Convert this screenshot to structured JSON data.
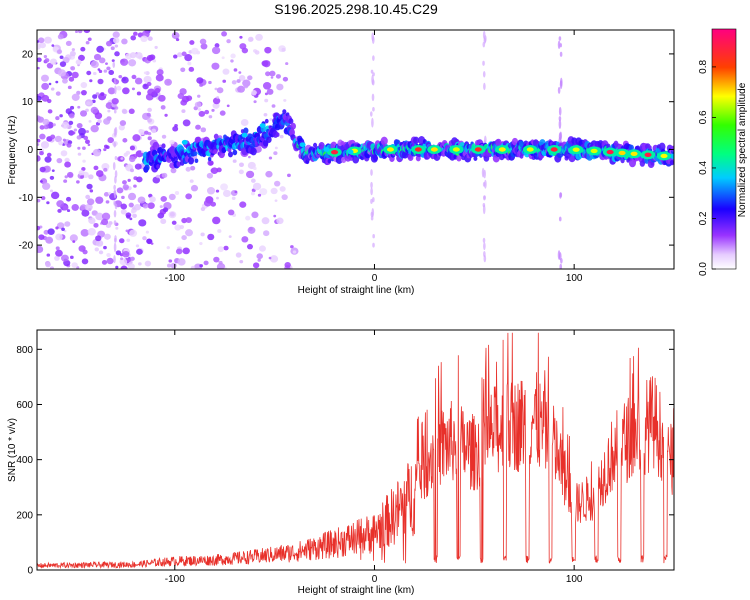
{
  "figure_title": "S196.2025.298.10.45.C29",
  "colors": {
    "snr_line": "#e8302a",
    "colormap": [
      "#ffffff",
      "#cc99ff",
      "#8000ff",
      "#0000ff",
      "#00ffff",
      "#00ff00",
      "#ffff00",
      "#ff0000",
      "#ff00aa"
    ]
  },
  "chart_data": [
    {
      "type": "heatmap",
      "title": "S196.2025.298.10.45.C29",
      "xlabel": "Height of straight line (km)",
      "ylabel": "Frequency (Hz)",
      "xlim": [
        -169,
        150
      ],
      "ylim": [
        -25,
        25
      ],
      "xticks": [
        -100,
        0,
        100
      ],
      "yticks": [
        -20,
        -10,
        0,
        10,
        20
      ],
      "colorbar": {
        "label": "Normalized spectral amplitude",
        "range": [
          0,
          0.95
        ],
        "ticks": [
          0.0,
          0.2,
          0.4,
          0.6,
          0.8
        ]
      },
      "features": [
        {
          "name": "broadband noise",
          "x_range": [
            -169,
            -40
          ],
          "freq_range": [
            -25,
            25
          ],
          "amplitude": 0.15
        },
        {
          "name": "signal trace",
          "x_range": [
            -115,
            150
          ],
          "freq_center": [
            [
              -115,
              -2
            ],
            [
              -60,
              2
            ],
            [
              -45,
              6
            ],
            [
              -35,
              -1
            ],
            [
              0,
              0
            ],
            [
              100,
              0
            ],
            [
              150,
              -1.5
            ]
          ],
          "amplitude_max": 0.93
        }
      ]
    },
    {
      "type": "line",
      "xlabel": "Height of straight line (km)",
      "ylabel": "SNR (10 * v/v)",
      "xlim": [
        -169,
        150
      ],
      "ylim": [
        0,
        870
      ],
      "xticks": [
        -100,
        0,
        100
      ],
      "yticks": [
        0,
        200,
        400,
        600,
        800
      ],
      "series": [
        {
          "name": "SNR",
          "envelope_x": [
            -169,
            -120,
            -100,
            -80,
            -60,
            -40,
            -20,
            0,
            10,
            20,
            30,
            40,
            50,
            60,
            70,
            80,
            90,
            100,
            110,
            120,
            130,
            140,
            150
          ],
          "envelope_y": [
            20,
            25,
            40,
            45,
            60,
            80,
            120,
            170,
            250,
            350,
            480,
            520,
            470,
            560,
            580,
            610,
            500,
            260,
            300,
            480,
            550,
            600,
            420
          ],
          "peak": [
            82,
            860
          ]
        }
      ]
    }
  ]
}
